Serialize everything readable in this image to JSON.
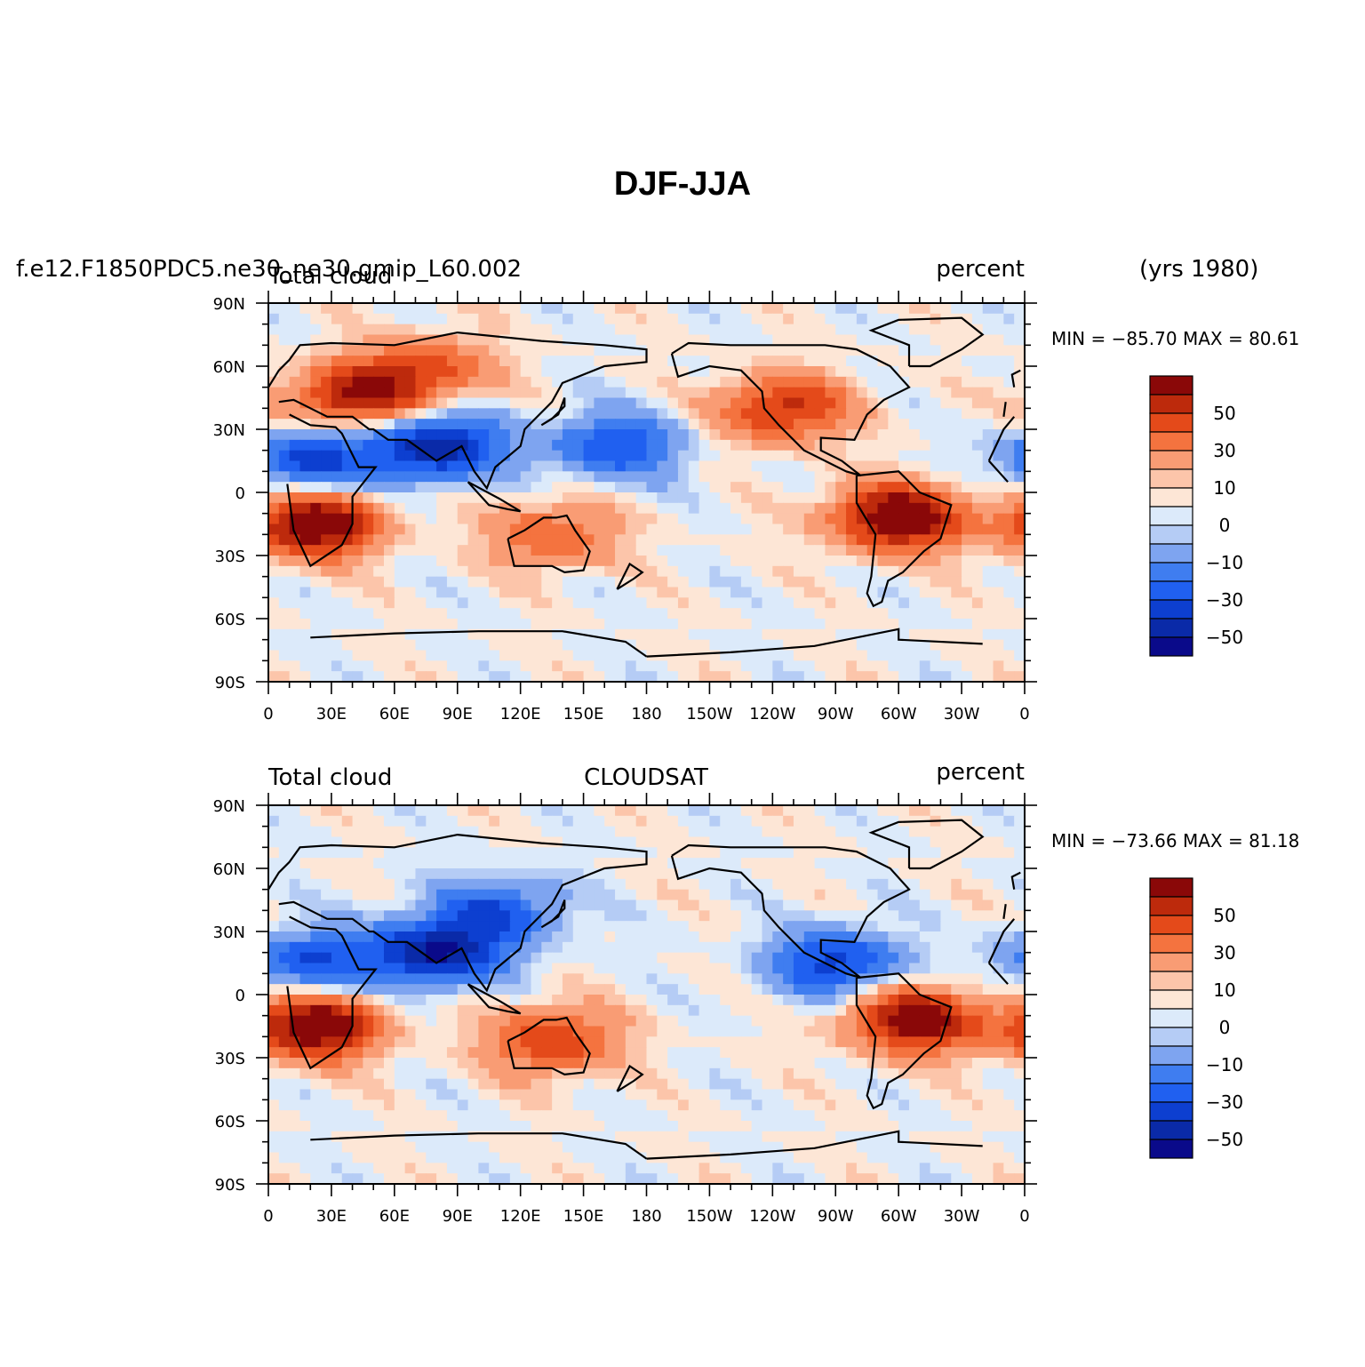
{
  "title": "DJF-JJA",
  "colorbar_levels": [
    "-60",
    "-50",
    "-40",
    "-30",
    "-20",
    "-10",
    "-5",
    "0",
    "5",
    "10",
    "20",
    "30",
    "40",
    "50",
    "60"
  ],
  "colorbar_labels": [
    "50",
    "30",
    "10",
    "0",
    "−10",
    "−30",
    "−50"
  ],
  "colorbar_colors": [
    "#0a0a8a",
    "#0a2aa8",
    "#0d3fd0",
    "#2060f0",
    "#3f7df0",
    "#7ea4f0",
    "#b5ccf5",
    "#dceafa",
    "#fde6d6",
    "#fcc5aa",
    "#f99c74",
    "#f4733f",
    "#e44a1a",
    "#bd2a0c",
    "#8a0808"
  ],
  "panels": [
    {
      "id": "model",
      "left_label": "Total cloud",
      "case_label": "f.e12.F1850PDC5.ne30_ne30.gmip_L60.002",
      "center_label": "",
      "right_label": "percent",
      "years_label": "(yrs 1980)",
      "min_text": "MIN = −85.70 MAX =   80.61",
      "min": -85.7,
      "max": 80.61
    },
    {
      "id": "obs",
      "left_label": "Total cloud",
      "case_label": "",
      "center_label": "CLOUDSAT",
      "right_label": "percent",
      "years_label": "",
      "min_text": "MIN = −73.66 MAX =   81.18",
      "min": -73.66,
      "max": 81.18
    }
  ],
  "map_axes": {
    "lat_ticks": [
      "90N",
      "60N",
      "30N",
      "0",
      "30S",
      "60S",
      "90S"
    ],
    "lon_ticks": [
      "0",
      "30E",
      "60E",
      "90E",
      "120E",
      "150E",
      "180",
      "150W",
      "120W",
      "90W",
      "60W",
      "30W",
      "0"
    ]
  },
  "chart_data": [
    {
      "type": "heatmap",
      "title": "DJF-JJA",
      "field": "Total cloud",
      "units": "percent",
      "source": "f.e12.F1850PDC5.ne30_ne30.gmip_L60.002",
      "period": "(yrs 1980)",
      "xlim": [
        0,
        360
      ],
      "ylim": [
        -90,
        90
      ],
      "levels": [
        -60,
        -50,
        -40,
        -30,
        -20,
        -10,
        -5,
        0,
        5,
        10,
        20,
        30,
        40,
        50,
        60
      ],
      "stats": {
        "min": -85.7,
        "max": 80.61
      },
      "anomaly_centers": [
        {
          "lon": 22,
          "lat": -15,
          "value": 65
        },
        {
          "lon": 300,
          "lat": -12,
          "value": 65
        },
        {
          "lon": 40,
          "lat": 45,
          "value": 50
        },
        {
          "lon": 75,
          "lat": 58,
          "value": 35
        },
        {
          "lon": 245,
          "lat": 40,
          "value": 45
        },
        {
          "lon": 80,
          "lat": 22,
          "value": -60
        },
        {
          "lon": 20,
          "lat": 15,
          "value": -45
        },
        {
          "lon": 165,
          "lat": 22,
          "value": -40
        },
        {
          "lon": 135,
          "lat": -20,
          "value": 30
        }
      ]
    },
    {
      "type": "heatmap",
      "title": "DJF-JJA",
      "field": "Total cloud",
      "units": "percent",
      "source": "CLOUDSAT",
      "xlim": [
        0,
        360
      ],
      "ylim": [
        -90,
        90
      ],
      "levels": [
        -60,
        -50,
        -40,
        -30,
        -20,
        -10,
        -5,
        0,
        5,
        10,
        20,
        30,
        40,
        50,
        60
      ],
      "stats": {
        "min": -73.66,
        "max": 81.18
      },
      "anomaly_centers": [
        {
          "lon": 22,
          "lat": -15,
          "value": 65
        },
        {
          "lon": 308,
          "lat": -12,
          "value": 60
        },
        {
          "lon": 135,
          "lat": -22,
          "value": 40
        },
        {
          "lon": 80,
          "lat": 20,
          "value": -60
        },
        {
          "lon": 20,
          "lat": 15,
          "value": -40
        },
        {
          "lon": 110,
          "lat": 40,
          "value": -35
        },
        {
          "lon": 270,
          "lat": 15,
          "value": -45
        }
      ]
    }
  ]
}
